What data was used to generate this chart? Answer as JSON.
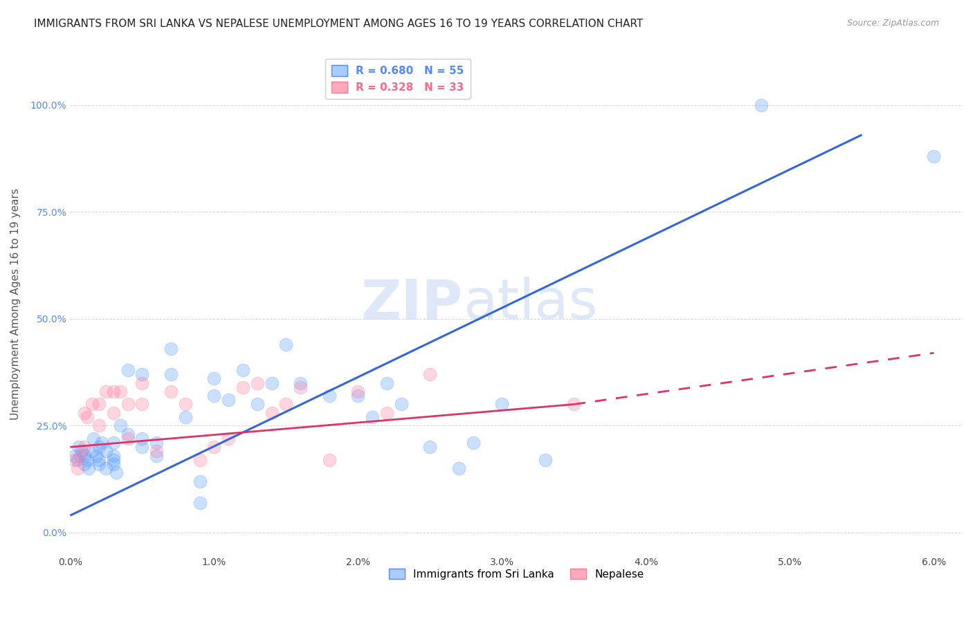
{
  "title": "IMMIGRANTS FROM SRI LANKA VS NEPALESE UNEMPLOYMENT AMONG AGES 16 TO 19 YEARS CORRELATION CHART",
  "source": "Source: ZipAtlas.com",
  "xlabel": "",
  "ylabel": "Unemployment Among Ages 16 to 19 years",
  "xlim": [
    0.0,
    0.062
  ],
  "ylim": [
    -0.05,
    1.12
  ],
  "xticks": [
    0.0,
    0.01,
    0.02,
    0.03,
    0.04,
    0.05,
    0.06
  ],
  "xtick_labels": [
    "0.0%",
    "1.0%",
    "2.0%",
    "3.0%",
    "4.0%",
    "5.0%",
    "6.0%"
  ],
  "yticks": [
    0.0,
    0.25,
    0.5,
    0.75,
    1.0
  ],
  "ytick_labels": [
    "0.0%",
    "25.0%",
    "50.0%",
    "75.0%",
    "100.0%"
  ],
  "legend_entries": [
    {
      "label": "R = 0.680   N = 55",
      "color": "#5588ff"
    },
    {
      "label": "R = 0.328   N = 33",
      "color": "#ff6688"
    }
  ],
  "legend_bottom": [
    "Immigrants from Sri Lanka",
    "Nepalese"
  ],
  "watermark_zip": "ZIP",
  "watermark_atlas": "atlas",
  "blue_scatter_x": [
    0.0003,
    0.0005,
    0.0006,
    0.0008,
    0.001,
    0.001,
    0.0012,
    0.0013,
    0.0015,
    0.0016,
    0.0018,
    0.002,
    0.002,
    0.002,
    0.0022,
    0.0025,
    0.0025,
    0.003,
    0.003,
    0.003,
    0.003,
    0.0032,
    0.0035,
    0.004,
    0.004,
    0.005,
    0.005,
    0.005,
    0.006,
    0.006,
    0.007,
    0.007,
    0.008,
    0.009,
    0.009,
    0.01,
    0.01,
    0.011,
    0.012,
    0.013,
    0.014,
    0.015,
    0.016,
    0.018,
    0.02,
    0.021,
    0.022,
    0.023,
    0.025,
    0.027,
    0.028,
    0.03,
    0.033,
    0.048,
    0.06
  ],
  "blue_scatter_y": [
    0.18,
    0.17,
    0.2,
    0.19,
    0.16,
    0.18,
    0.17,
    0.15,
    0.19,
    0.22,
    0.18,
    0.16,
    0.2,
    0.17,
    0.21,
    0.15,
    0.19,
    0.18,
    0.17,
    0.21,
    0.16,
    0.14,
    0.25,
    0.23,
    0.38,
    0.2,
    0.22,
    0.37,
    0.18,
    0.21,
    0.37,
    0.43,
    0.27,
    0.07,
    0.12,
    0.32,
    0.36,
    0.31,
    0.38,
    0.3,
    0.35,
    0.44,
    0.35,
    0.32,
    0.32,
    0.27,
    0.35,
    0.3,
    0.2,
    0.15,
    0.21,
    0.3,
    0.17,
    1.0,
    0.88
  ],
  "pink_scatter_x": [
    0.0003,
    0.0005,
    0.0007,
    0.001,
    0.001,
    0.0012,
    0.0015,
    0.002,
    0.002,
    0.0025,
    0.003,
    0.003,
    0.0035,
    0.004,
    0.004,
    0.005,
    0.005,
    0.006,
    0.007,
    0.008,
    0.009,
    0.01,
    0.011,
    0.012,
    0.013,
    0.014,
    0.015,
    0.016,
    0.018,
    0.02,
    0.022,
    0.025,
    0.035
  ],
  "pink_scatter_y": [
    0.17,
    0.15,
    0.18,
    0.2,
    0.28,
    0.27,
    0.3,
    0.25,
    0.3,
    0.33,
    0.28,
    0.33,
    0.33,
    0.22,
    0.3,
    0.3,
    0.35,
    0.19,
    0.33,
    0.3,
    0.17,
    0.2,
    0.22,
    0.34,
    0.35,
    0.28,
    0.3,
    0.34,
    0.17,
    0.33,
    0.28,
    0.37,
    0.3
  ],
  "blue_line": {
    "x0": 0.0,
    "y0": 0.04,
    "x1": 0.055,
    "y1": 0.93
  },
  "pink_line_solid": {
    "x0": 0.0,
    "y0": 0.2,
    "x1": 0.035,
    "y1": 0.3
  },
  "pink_line_dashed": {
    "x0": 0.035,
    "y0": 0.3,
    "x1": 0.06,
    "y1": 0.42
  },
  "blue_color": "#5599ff",
  "pink_color": "#ff7799",
  "blue_line_color": "#3366dd",
  "pink_line_color": "#dd3366",
  "grid_color": "#cccccc",
  "title_fontsize": 11,
  "label_fontsize": 11,
  "tick_fontsize": 10,
  "source_fontsize": 9
}
